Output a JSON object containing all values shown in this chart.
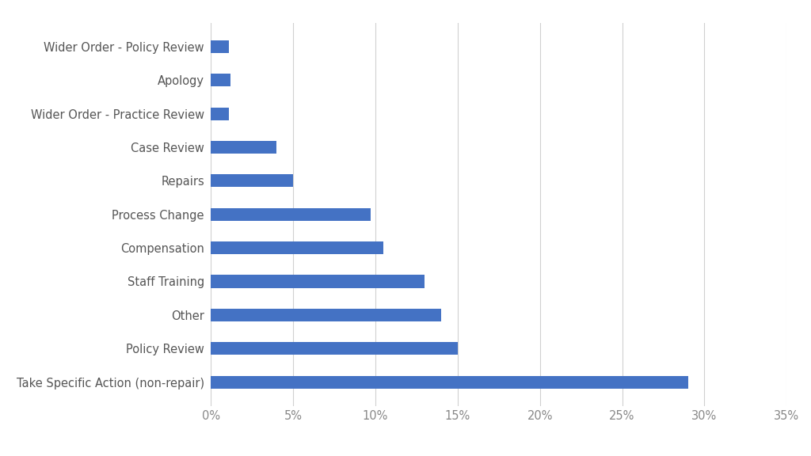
{
  "categories": [
    "Take Specific Action (non-repair)",
    "Policy Review",
    "Other",
    "Staff Training",
    "Compensation",
    "Process Change",
    "Repairs",
    "Case Review",
    "Wider Order - Practice Review",
    "Apology",
    "Wider Order - Policy Review"
  ],
  "values": [
    0.29,
    0.15,
    0.14,
    0.13,
    0.105,
    0.097,
    0.05,
    0.04,
    0.011,
    0.012,
    0.011
  ],
  "bar_color": "#4472C4",
  "background_color": "#ffffff",
  "plot_bg_color": "#ffffff",
  "xlim": [
    0,
    0.35
  ],
  "xticks": [
    0,
    0.05,
    0.1,
    0.15,
    0.2,
    0.25,
    0.3,
    0.35
  ],
  "xtick_labels": [
    "0%",
    "5%",
    "10%",
    "15%",
    "20%",
    "25%",
    "30%",
    "35%"
  ],
  "label_fontsize": 10.5,
  "tick_fontsize": 10.5,
  "bar_height": 0.38,
  "grid_color": "#d0d0d0",
  "tick_color": "#888888",
  "label_color": "#555555"
}
